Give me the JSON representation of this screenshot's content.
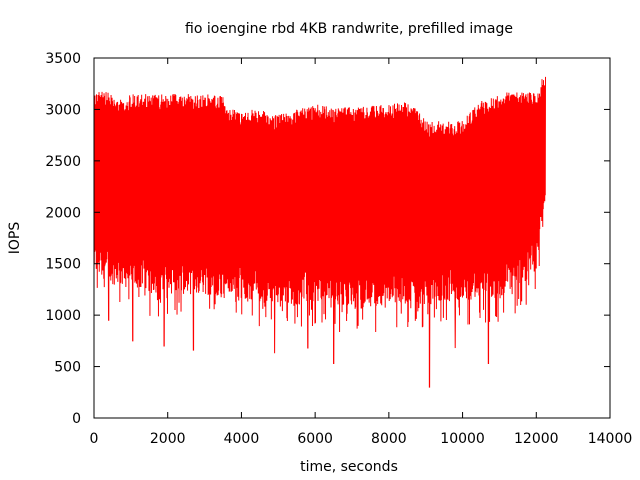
{
  "chart_data": {
    "type": "line",
    "title": "fio ioengine rbd 4KB randwrite, prefilled image",
    "xlabel": "time, seconds",
    "ylabel": "IOPS",
    "xlim": [
      0,
      14000
    ],
    "ylim": [
      0,
      3500
    ],
    "xticks": [
      0,
      2000,
      4000,
      6000,
      8000,
      10000,
      12000,
      14000
    ],
    "yticks": [
      0,
      500,
      1000,
      1500,
      2000,
      2500,
      3000,
      3500
    ],
    "grid": false,
    "legend": "none",
    "series_color": "#ff0000",
    "series": [
      {
        "x_start": 0,
        "x_end": 12250,
        "upper_envelope": [
          [
            0,
            3150
          ],
          [
            100,
            3200
          ],
          [
            500,
            3150
          ],
          [
            800,
            3100
          ],
          [
            1000,
            3150
          ],
          [
            2000,
            3150
          ],
          [
            3000,
            3150
          ],
          [
            3500,
            3130
          ],
          [
            3600,
            3000
          ],
          [
            4500,
            3000
          ],
          [
            5000,
            2950
          ],
          [
            5500,
            3000
          ],
          [
            6000,
            3050
          ],
          [
            7000,
            3020
          ],
          [
            8000,
            3050
          ],
          [
            8600,
            3080
          ],
          [
            9000,
            2900
          ],
          [
            9500,
            2880
          ],
          [
            10000,
            2900
          ],
          [
            10500,
            3100
          ],
          [
            11000,
            3150
          ],
          [
            11500,
            3200
          ],
          [
            12000,
            3150
          ],
          [
            12150,
            3300
          ],
          [
            12250,
            3340
          ]
        ],
        "lower_envelope": [
          [
            0,
            1400
          ],
          [
            500,
            1300
          ],
          [
            1000,
            1250
          ],
          [
            2000,
            1200
          ],
          [
            3000,
            1200
          ],
          [
            4000,
            1150
          ],
          [
            5000,
            1100
          ],
          [
            6000,
            1100
          ],
          [
            7000,
            1050
          ],
          [
            8000,
            1100
          ],
          [
            9000,
            1100
          ],
          [
            10000,
            1150
          ],
          [
            11000,
            1150
          ],
          [
            12000,
            1400
          ],
          [
            12250,
            2000
          ]
        ],
        "notable_minima": [
          [
            400,
            950
          ],
          [
            1050,
            750
          ],
          [
            1900,
            700
          ],
          [
            2700,
            660
          ],
          [
            4900,
            630
          ],
          [
            5800,
            680
          ],
          [
            6500,
            530
          ],
          [
            9100,
            300
          ],
          [
            9800,
            680
          ],
          [
            10700,
            530
          ]
        ]
      }
    ]
  }
}
